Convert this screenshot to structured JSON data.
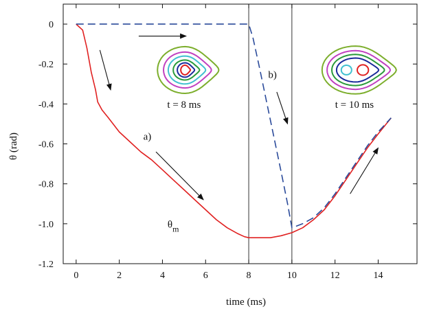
{
  "chart_data": {
    "type": "line",
    "xlabel": "time (ms)",
    "ylabel": "θ (rad)",
    "xlim": [
      -0.6,
      15.8
    ],
    "ylim": [
      -1.2,
      0.1
    ],
    "xticks": [
      0,
      2,
      4,
      6,
      8,
      10,
      12,
      14
    ],
    "xtick_labels": [
      "0",
      "2",
      "4",
      "6",
      "8",
      "10",
      "12",
      "14"
    ],
    "yticks": [
      0,
      -0.2,
      -0.4,
      -0.6,
      -0.8,
      -1.0,
      -1.2
    ],
    "ytick_labels": [
      "0",
      "-0.2",
      "-0.4",
      "-0.6",
      "-0.8",
      "-1.0",
      "-1.2"
    ],
    "grid": false,
    "vertical_lines": [
      8,
      10
    ],
    "series": [
      {
        "name": "a)",
        "color": "#e02020",
        "style": "solid",
        "x": [
          0.0,
          0.3,
          0.5,
          0.7,
          0.9,
          1.0,
          1.2,
          1.5,
          2.0,
          2.5,
          3.0,
          3.5,
          4.0,
          4.5,
          5.0,
          5.5,
          6.0,
          6.5,
          7.0,
          7.5,
          7.8,
          8.0,
          8.5,
          9.0,
          9.5,
          10.0,
          10.5,
          11.0,
          11.5,
          12.0,
          12.5,
          13.0,
          13.5,
          14.0,
          14.6
        ],
        "y": [
          0.0,
          -0.03,
          -0.12,
          -0.24,
          -0.33,
          -0.39,
          -0.43,
          -0.47,
          -0.54,
          -0.59,
          -0.64,
          -0.68,
          -0.73,
          -0.78,
          -0.83,
          -0.88,
          -0.93,
          -0.98,
          -1.02,
          -1.05,
          -1.065,
          -1.07,
          -1.07,
          -1.07,
          -1.06,
          -1.045,
          -1.02,
          -0.98,
          -0.93,
          -0.86,
          -0.78,
          -0.7,
          -0.62,
          -0.55,
          -0.47
        ]
      },
      {
        "name": "b)",
        "color": "#2a4a9a",
        "style": "dashed",
        "x": [
          0.0,
          2.0,
          4.0,
          6.0,
          8.0,
          8.2,
          8.5,
          9.0,
          9.5,
          9.8,
          10.0,
          10.5,
          11.0,
          11.5,
          12.0,
          12.5,
          13.0,
          13.5,
          14.0,
          14.6
        ],
        "y": [
          0.0,
          0.0,
          0.0,
          0.0,
          0.0,
          -0.07,
          -0.22,
          -0.48,
          -0.74,
          -0.9,
          -1.02,
          -1.0,
          -0.97,
          -0.92,
          -0.85,
          -0.77,
          -0.69,
          -0.61,
          -0.54,
          -0.47
        ]
      }
    ],
    "annotations": [
      {
        "text": "a)",
        "x": 3.3,
        "y": -0.58,
        "kind": "label"
      },
      {
        "text": "b)",
        "x": 9.1,
        "y": -0.27,
        "kind": "label"
      },
      {
        "text": "θ",
        "sub": "m",
        "x": 4.5,
        "y": -1.02,
        "kind": "label"
      },
      {
        "text": "t = 8 ms",
        "x": 5.0,
        "y": -0.42,
        "kind": "label"
      },
      {
        "text": "t = 10 ms",
        "x": 12.9,
        "y": -0.42,
        "kind": "label"
      }
    ],
    "arrows": [
      {
        "from": [
          2.9,
          -0.06
        ],
        "to": [
          5.1,
          -0.06
        ]
      },
      {
        "from": [
          1.1,
          -0.13
        ],
        "to": [
          1.6,
          -0.33
        ]
      },
      {
        "from": [
          3.7,
          -0.64
        ],
        "to": [
          5.9,
          -0.88
        ]
      },
      {
        "from": [
          9.3,
          -0.34
        ],
        "to": [
          9.8,
          -0.5
        ]
      },
      {
        "from": [
          12.7,
          -0.85
        ],
        "to": [
          14.0,
          -0.62
        ]
      }
    ],
    "insets": [
      {
        "name": "contours-t8",
        "center": [
          5.05,
          -0.23
        ],
        "contours": [
          {
            "color": "#7cae2c",
            "rx": 1.28,
            "ry": 0.117
          },
          {
            "color": "#c040c0",
            "rx": 1.0,
            "ry": 0.09
          },
          {
            "color": "#40c0d0",
            "rx": 0.78,
            "ry": 0.07
          },
          {
            "color": "#2a9a3a",
            "rx": 0.55,
            "ry": 0.05
          },
          {
            "color": "#1a2a9a",
            "rx": 0.36,
            "ry": 0.036
          },
          {
            "color": "#e02020",
            "rx": 0.2,
            "ry": 0.024
          }
        ]
      },
      {
        "name": "contours-t10",
        "center": [
          12.95,
          -0.23
        ],
        "contours": [
          {
            "color": "#7cae2c",
            "rx": 1.55,
            "ry": 0.12
          },
          {
            "color": "#c040c0",
            "rx": 1.32,
            "ry": 0.097
          },
          {
            "color": "#2a9a3a",
            "rx": 1.1,
            "ry": 0.078
          },
          {
            "color": "#1a2a9a",
            "rx": 0.88,
            "ry": 0.06
          }
        ],
        "islands": [
          {
            "color": "#40c0d0",
            "dx": -0.42,
            "rx": 0.24,
            "ry": 0.024
          },
          {
            "color": "#e02020",
            "dx": 0.34,
            "rx": 0.26,
            "ry": 0.026
          }
        ]
      }
    ]
  }
}
